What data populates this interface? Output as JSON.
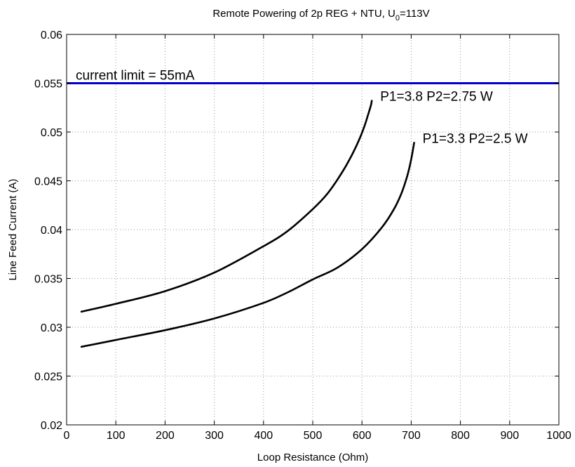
{
  "chart_data": {
    "type": "line",
    "title_prefix": "Remote Powering of 2p REG + NTU, U",
    "title_subscript": "0",
    "title_suffix": "=113V",
    "xlabel": "Loop Resistance (Ohm)",
    "ylabel": "Line Feed Current (A)",
    "xlim": [
      0,
      1000
    ],
    "ylim": [
      0.02,
      0.06
    ],
    "xticks": [
      0,
      100,
      200,
      300,
      400,
      500,
      600,
      700,
      800,
      900,
      1000
    ],
    "yticks": [
      0.02,
      0.025,
      0.03,
      0.035,
      0.04,
      0.045,
      0.05,
      0.055,
      0.06
    ],
    "xtick_labels": [
      "0",
      "100",
      "200",
      "300",
      "400",
      "500",
      "600",
      "700",
      "800",
      "900",
      "1000"
    ],
    "ytick_labels": [
      "0.02",
      "0.025",
      "0.03",
      "0.035",
      "0.04",
      "0.045",
      "0.05",
      "0.055",
      "0.06"
    ],
    "grid": true,
    "series": [
      {
        "label": "P1=3.8  P2=2.75 W",
        "color": "#000000",
        "x": [
          30,
          100,
          200,
          300,
          400,
          450,
          500,
          530,
          560,
          580,
          595,
          605,
          612,
          618,
          620
        ],
        "y": [
          0.0316,
          0.0324,
          0.0337,
          0.0356,
          0.0383,
          0.0399,
          0.0421,
          0.0437,
          0.0459,
          0.0477,
          0.0493,
          0.0506,
          0.0517,
          0.0527,
          0.0532
        ]
      },
      {
        "label": "P1=3.3  P2=2.5 W",
        "color": "#000000",
        "x": [
          30,
          100,
          200,
          300,
          400,
          450,
          500,
          550,
          600,
          640,
          665,
          680,
          692,
          700,
          706
        ],
        "y": [
          0.028,
          0.0287,
          0.0297,
          0.0309,
          0.0325,
          0.0336,
          0.0349,
          0.0361,
          0.038,
          0.0402,
          0.0421,
          0.0437,
          0.0455,
          0.0472,
          0.0489
        ]
      }
    ],
    "reference_line": {
      "label": "current limit = 55mA",
      "y": 0.055,
      "color": "#0000cc"
    }
  }
}
